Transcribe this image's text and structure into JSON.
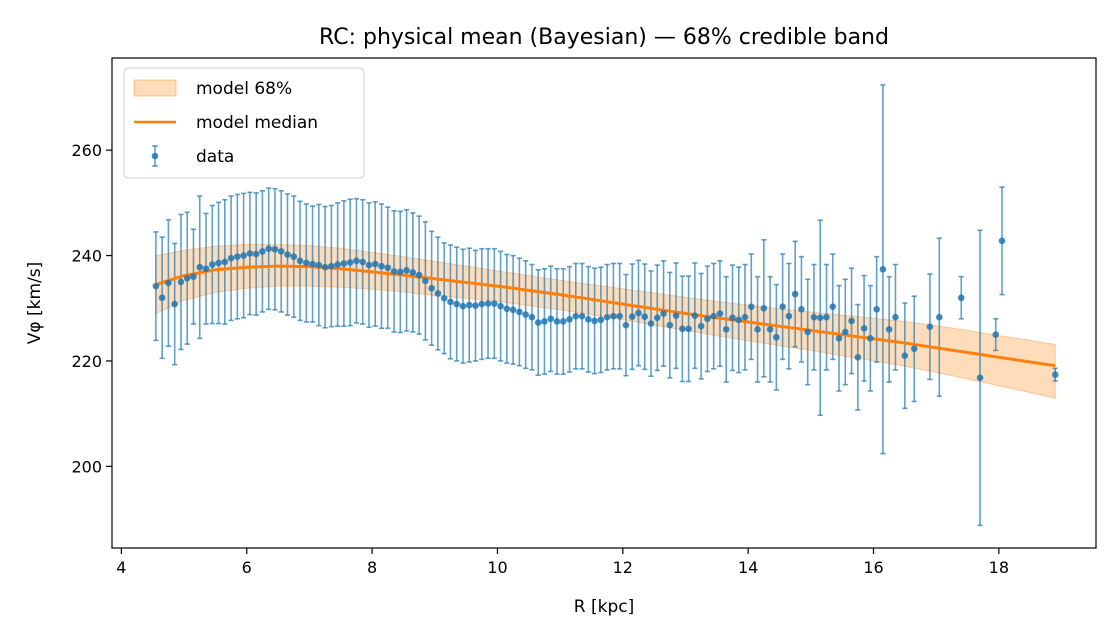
{
  "chart_data": {
    "type": "line",
    "title": "RC: physical mean (Bayesian) — 68% credible band",
    "xlabel": "R [kpc]",
    "ylabel": "Vφ [km/s]",
    "xlim": [
      3.85,
      19.55
    ],
    "ylim": [
      184.5,
      277.5
    ],
    "xticks": [
      4,
      6,
      8,
      10,
      12,
      14,
      16,
      18
    ],
    "yticks": [
      200,
      220,
      240,
      260
    ],
    "grid": false,
    "legend_placement": "top-left",
    "colors": {
      "band": "#ffbb78",
      "band_edge": "#ff7f0e",
      "median": "#ff7f0e",
      "data": "#1f77b4"
    },
    "legend": [
      {
        "key": "band",
        "label": "model 68%"
      },
      {
        "key": "median",
        "label": "model median"
      },
      {
        "key": "data",
        "label": "data"
      }
    ],
    "series": [
      {
        "name": "model median",
        "x": [
          4.55,
          5.0,
          5.5,
          6.0,
          6.5,
          7.0,
          7.5,
          8.0,
          8.5,
          9.0,
          9.5,
          10.0,
          10.5,
          11.0,
          11.5,
          12.0,
          12.5,
          13.0,
          13.5,
          14.0,
          14.5,
          15.0,
          15.5,
          16.0,
          16.5,
          17.0,
          17.5,
          18.0,
          18.5,
          18.9
        ],
        "y": [
          234.5,
          236.2,
          237.3,
          237.8,
          238.0,
          237.9,
          237.5,
          236.9,
          236.3,
          235.6,
          234.9,
          234.2,
          233.4,
          232.6,
          231.7,
          230.8,
          229.9,
          229.0,
          228.2,
          227.4,
          226.6,
          225.8,
          225.0,
          224.2,
          223.4,
          222.5,
          221.6,
          220.7,
          219.8,
          219.1
        ]
      },
      {
        "name": "model 68%",
        "x": [
          4.55,
          5.0,
          5.5,
          6.0,
          6.5,
          7.0,
          7.5,
          8.0,
          8.5,
          9.0,
          9.5,
          10.0,
          10.5,
          11.0,
          11.5,
          12.0,
          12.5,
          13.0,
          13.5,
          14.0,
          14.5,
          15.0,
          15.5,
          16.0,
          16.5,
          17.0,
          17.5,
          18.0,
          18.5,
          18.9
        ],
        "lower": [
          229.0,
          231.5,
          233.0,
          233.8,
          234.2,
          234.2,
          234.0,
          233.6,
          233.1,
          232.4,
          231.9,
          231.3,
          230.5,
          229.7,
          228.8,
          227.8,
          226.8,
          225.8,
          224.8,
          223.8,
          222.9,
          222.0,
          221.0,
          220.0,
          219.0,
          217.8,
          216.6,
          215.3,
          214.0,
          212.9
        ],
        "upper": [
          240.0,
          241.0,
          241.8,
          242.1,
          242.1,
          241.9,
          241.4,
          240.6,
          239.8,
          238.9,
          238.0,
          237.1,
          236.2,
          235.3,
          234.5,
          233.7,
          232.9,
          232.1,
          231.3,
          230.6,
          229.9,
          229.3,
          228.7,
          228.1,
          227.5,
          226.7,
          225.8,
          224.8,
          223.9,
          223.1
        ]
      },
      {
        "name": "data",
        "points": [
          [
            4.55,
            234.2,
            10.3
          ],
          [
            4.65,
            232.0,
            11.5
          ],
          [
            4.75,
            234.8,
            12.0
          ],
          [
            4.85,
            230.8,
            11.5
          ],
          [
            4.95,
            235.0,
            12.8
          ],
          [
            5.05,
            235.7,
            12.5
          ],
          [
            5.15,
            236.0,
            9.0
          ],
          [
            5.25,
            237.8,
            13.5
          ],
          [
            5.35,
            237.5,
            10.5
          ],
          [
            5.45,
            238.3,
            11.2
          ],
          [
            5.55,
            238.6,
            11.5
          ],
          [
            5.65,
            238.8,
            11.8
          ],
          [
            5.75,
            239.5,
            11.8
          ],
          [
            5.85,
            239.8,
            11.8
          ],
          [
            5.95,
            240.0,
            11.8
          ],
          [
            6.05,
            240.4,
            11.6
          ],
          [
            6.15,
            240.3,
            11.6
          ],
          [
            6.25,
            240.8,
            11.5
          ],
          [
            6.35,
            241.3,
            11.5
          ],
          [
            6.45,
            241.2,
            11.5
          ],
          [
            6.55,
            240.8,
            11.5
          ],
          [
            6.65,
            240.2,
            11.5
          ],
          [
            6.75,
            239.8,
            11.5
          ],
          [
            6.85,
            239.0,
            11.3
          ],
          [
            6.95,
            238.6,
            11.2
          ],
          [
            7.05,
            238.4,
            11.0
          ],
          [
            7.15,
            238.2,
            11.5
          ],
          [
            7.25,
            237.8,
            11.5
          ],
          [
            7.35,
            238.0,
            11.5
          ],
          [
            7.45,
            238.3,
            11.7
          ],
          [
            7.55,
            238.5,
            11.9
          ],
          [
            7.65,
            238.7,
            12.0
          ],
          [
            7.75,
            239.0,
            11.8
          ],
          [
            7.85,
            238.8,
            11.8
          ],
          [
            7.95,
            238.2,
            11.8
          ],
          [
            8.05,
            238.4,
            11.8
          ],
          [
            8.15,
            238.0,
            11.8
          ],
          [
            8.25,
            237.7,
            11.5
          ],
          [
            8.35,
            237.0,
            11.5
          ],
          [
            8.45,
            236.9,
            11.5
          ],
          [
            8.55,
            237.2,
            11.5
          ],
          [
            8.65,
            236.8,
            11.3
          ],
          [
            8.75,
            236.3,
            11.2
          ],
          [
            8.85,
            235.2,
            11.2
          ],
          [
            8.95,
            233.8,
            10.8
          ],
          [
            9.05,
            232.8,
            10.7
          ],
          [
            9.15,
            231.9,
            10.5
          ],
          [
            9.25,
            231.2,
            10.8
          ],
          [
            9.35,
            230.8,
            10.8
          ],
          [
            9.45,
            230.4,
            10.8
          ],
          [
            9.55,
            230.6,
            10.8
          ],
          [
            9.65,
            230.5,
            10.5
          ],
          [
            9.75,
            230.8,
            10.5
          ],
          [
            9.85,
            230.9,
            10.4
          ],
          [
            9.95,
            230.9,
            10.4
          ],
          [
            10.05,
            230.4,
            10.4
          ],
          [
            10.15,
            229.9,
            10.3
          ],
          [
            10.25,
            229.7,
            10.3
          ],
          [
            10.35,
            229.3,
            10.2
          ],
          [
            10.45,
            228.8,
            10.2
          ],
          [
            10.55,
            228.3,
            10.0
          ],
          [
            10.65,
            227.3,
            10.0
          ],
          [
            10.75,
            227.5,
            10.0
          ],
          [
            10.85,
            228.0,
            10.0
          ],
          [
            10.95,
            227.5,
            10.0
          ],
          [
            11.05,
            227.5,
            10.0
          ],
          [
            11.15,
            227.9,
            10.0
          ],
          [
            11.25,
            228.5,
            10.0
          ],
          [
            11.35,
            228.5,
            10.0
          ],
          [
            11.45,
            227.9,
            10.0
          ],
          [
            11.55,
            227.6,
            10.0
          ],
          [
            11.65,
            227.8,
            10.0
          ],
          [
            11.75,
            228.3,
            10.0
          ],
          [
            11.85,
            228.5,
            10.0
          ],
          [
            11.95,
            228.5,
            10.0
          ],
          [
            12.05,
            226.8,
            9.6
          ],
          [
            12.15,
            228.4,
            10.0
          ],
          [
            12.25,
            229.1,
            10.0
          ],
          [
            12.35,
            228.4,
            10.0
          ],
          [
            12.45,
            227.1,
            10.0
          ],
          [
            12.55,
            228.2,
            10.0
          ],
          [
            12.65,
            229.0,
            10.0
          ],
          [
            12.75,
            226.8,
            10.0
          ],
          [
            12.85,
            228.6,
            10.0
          ],
          [
            12.95,
            226.1,
            10.0
          ],
          [
            13.05,
            226.1,
            10.0
          ],
          [
            13.15,
            228.6,
            10.0
          ],
          [
            13.25,
            226.6,
            10.0
          ],
          [
            13.35,
            228.0,
            10.0
          ],
          [
            13.45,
            228.5,
            10.0
          ],
          [
            13.55,
            229.0,
            10.0
          ],
          [
            13.65,
            226.0,
            10.0
          ],
          [
            13.75,
            228.2,
            10.0
          ],
          [
            13.85,
            227.8,
            10.0
          ],
          [
            13.95,
            228.3,
            10.0
          ],
          [
            14.05,
            230.3,
            10.0
          ],
          [
            14.15,
            226.0,
            10.0
          ],
          [
            14.25,
            230.0,
            13.0
          ],
          [
            14.35,
            226.0,
            10.0
          ],
          [
            14.45,
            224.5,
            10.0
          ],
          [
            14.55,
            230.3,
            10.0
          ],
          [
            14.65,
            228.5,
            10.0
          ],
          [
            14.75,
            232.7,
            10.0
          ],
          [
            14.85,
            229.8,
            10.0
          ],
          [
            14.95,
            225.5,
            10.0
          ],
          [
            15.05,
            228.3,
            10.0
          ],
          [
            15.15,
            228.2,
            18.5
          ],
          [
            15.25,
            228.3,
            10.0
          ],
          [
            15.35,
            230.3,
            10.0
          ],
          [
            15.45,
            224.3,
            10.0
          ],
          [
            15.55,
            225.5,
            10.0
          ],
          [
            15.65,
            227.6,
            10.0
          ],
          [
            15.75,
            220.7,
            10.0
          ],
          [
            15.85,
            226.2,
            10.0
          ],
          [
            15.95,
            224.3,
            10.0
          ],
          [
            16.05,
            229.8,
            10.0
          ],
          [
            16.15,
            237.4,
            35.0
          ],
          [
            16.25,
            226.0,
            10.0
          ],
          [
            16.35,
            228.3,
            10.0
          ],
          [
            16.5,
            221.0,
            10.0
          ],
          [
            16.65,
            222.3,
            10.0
          ],
          [
            16.9,
            226.5,
            10.0
          ],
          [
            17.05,
            228.3,
            15.0
          ],
          [
            17.4,
            232.0,
            4.0
          ],
          [
            17.7,
            216.8,
            28.0
          ],
          [
            17.95,
            225.0,
            3.0
          ],
          [
            18.05,
            242.8,
            10.2
          ],
          [
            18.9,
            217.4,
            1.2
          ]
        ]
      }
    ]
  }
}
